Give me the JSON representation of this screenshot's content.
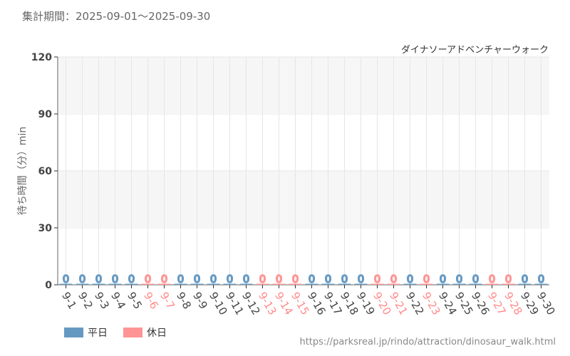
{
  "period_label": "集計期間：2025-09-01～2025-09-30",
  "source_url": "https://parksreal.jp/rindo/attraction/dinosaur_walk.html",
  "chart_data": {
    "type": "bar",
    "title": "ダイナソーアドベンチャーウォーク",
    "ylabel": "待ち時間（分）min",
    "ylim": [
      0,
      120
    ],
    "yticks": [
      0,
      30,
      60,
      90,
      120
    ],
    "categories": [
      "9-1",
      "9-2",
      "9-3",
      "9-4",
      "9-5",
      "9-6",
      "9-7",
      "9-8",
      "9-9",
      "9-10",
      "9-11",
      "9-12",
      "9-13",
      "9-14",
      "9-15",
      "9-16",
      "9-17",
      "9-18",
      "9-19",
      "9-20",
      "9-21",
      "9-22",
      "9-23",
      "9-24",
      "9-25",
      "9-26",
      "9-27",
      "9-28",
      "9-29",
      "9-30"
    ],
    "values": [
      0,
      0,
      0,
      0,
      0,
      0,
      0,
      0,
      0,
      0,
      0,
      0,
      0,
      0,
      0,
      0,
      0,
      0,
      0,
      0,
      0,
      0,
      0,
      0,
      0,
      0,
      0,
      0,
      0,
      0
    ],
    "day_type": [
      "w",
      "w",
      "w",
      "w",
      "w",
      "h",
      "h",
      "w",
      "w",
      "w",
      "w",
      "w",
      "h",
      "h",
      "h",
      "w",
      "w",
      "w",
      "w",
      "h",
      "h",
      "w",
      "h",
      "w",
      "w",
      "w",
      "h",
      "h",
      "w",
      "w"
    ],
    "legend": [
      {
        "name": "平日",
        "color": "#6699c2"
      },
      {
        "name": "休日",
        "color": "#ff9494"
      }
    ],
    "legend_placement": "bottom-left",
    "grid": true
  }
}
